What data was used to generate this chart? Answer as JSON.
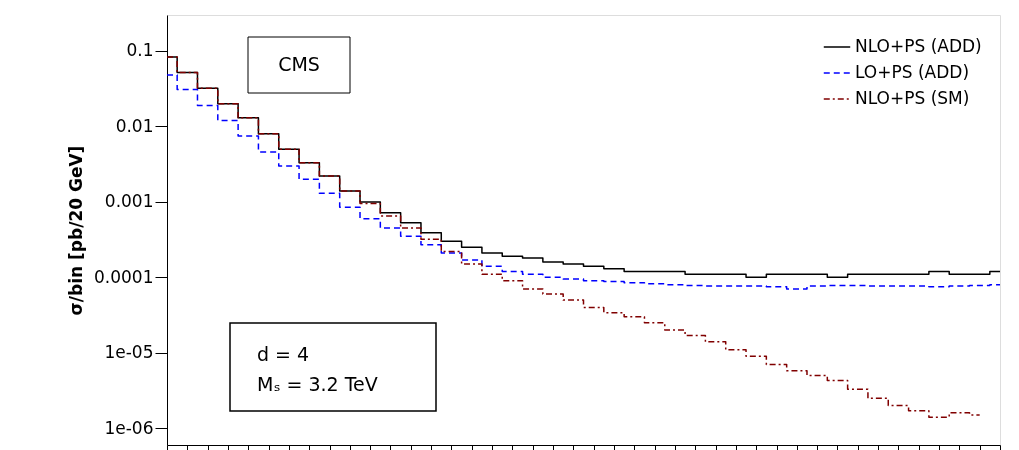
{
  "chart_data": {
    "type": "step",
    "ylabel": "σ/bin [pb/20 GeV]",
    "categories": [
      null,
      null,
      null,
      null,
      null,
      null,
      null,
      null,
      null,
      null,
      null,
      null,
      null,
      null,
      null,
      null,
      null,
      null,
      null,
      null,
      null,
      null,
      null,
      null,
      null,
      null,
      null,
      null,
      null,
      null,
      null,
      null,
      null,
      null,
      null,
      null,
      null,
      null,
      null,
      null,
      null,
      null
    ],
    "series": [
      {
        "name": "NLO+PS (ADD)",
        "color": "#000000",
        "line_style": "solid",
        "values": [
          0.083,
          0.052,
          0.032,
          0.02,
          0.013,
          0.008,
          0.005,
          0.0033,
          0.0022,
          0.0014,
          0.001,
          0.00072,
          0.00053,
          0.00039,
          0.0003,
          0.00025,
          0.00021,
          0.00019,
          0.00018,
          0.00016,
          0.00015,
          0.00014,
          0.00013,
          0.00012,
          0.00012,
          0.00012,
          0.00011,
          0.00011,
          0.00011,
          0.0001,
          0.00011,
          0.00011,
          0.00011,
          0.0001,
          0.00011,
          0.00011,
          0.00011,
          0.00011,
          0.00012,
          0.00011,
          0.00011,
          0.00012
        ]
      },
      {
        "name": "LO+PS (ADD)",
        "color": "#0000ff",
        "line_style": "dashed",
        "values": [
          0.048,
          0.031,
          0.019,
          0.012,
          0.0075,
          0.0046,
          0.003,
          0.002,
          0.0013,
          0.00085,
          0.0006,
          0.00045,
          0.00035,
          0.00027,
          0.00021,
          0.00017,
          0.00014,
          0.00012,
          0.00011,
          0.0001,
          9.5e-05,
          9e-05,
          8.8e-05,
          8.5e-05,
          8.2e-05,
          8e-05,
          7.8e-05,
          7.7e-05,
          7.7e-05,
          7.7e-05,
          7.5e-05,
          7e-05,
          7.7e-05,
          7.8e-05,
          7.8e-05,
          7.7e-05,
          7.7e-05,
          7.7e-05,
          7.5e-05,
          7.7e-05,
          7.8e-05,
          8e-05
        ]
      },
      {
        "name": "NLO+PS (SM)",
        "color": "#800000",
        "line_style": "dashdot",
        "values": [
          0.083,
          0.052,
          0.032,
          0.02,
          0.013,
          0.008,
          0.005,
          0.0033,
          0.0022,
          0.0014,
          0.00095,
          0.00065,
          0.00045,
          0.00032,
          0.00022,
          0.00015,
          0.00011,
          9e-05,
          7e-05,
          6e-05,
          5e-05,
          4e-05,
          3.4e-05,
          3e-05,
          2.5e-05,
          2e-05,
          1.7e-05,
          1.4e-05,
          1.1e-05,
          9e-06,
          7e-06,
          5.8e-06,
          5e-06,
          4.3e-06,
          3.3e-06,
          2.5e-06,
          2e-06,
          1.7e-06,
          1.4e-06,
          1.6e-06,
          1.5e-06,
          null
        ]
      }
    ],
    "log": "y",
    "ylim": [
      6e-07,
      0.3
    ],
    "yticks": [
      {
        "value": 1e-06,
        "label": "1e-06"
      },
      {
        "value": 1e-05,
        "label": "1e-05"
      },
      0.0001,
      0.001,
      0.01,
      0.1
    ],
    "tick_labels": "y",
    "grid": false,
    "legend": "top right",
    "annotations": [
      "CMS",
      "d = 4",
      "Mₛ = 3.2 TeV"
    ]
  }
}
